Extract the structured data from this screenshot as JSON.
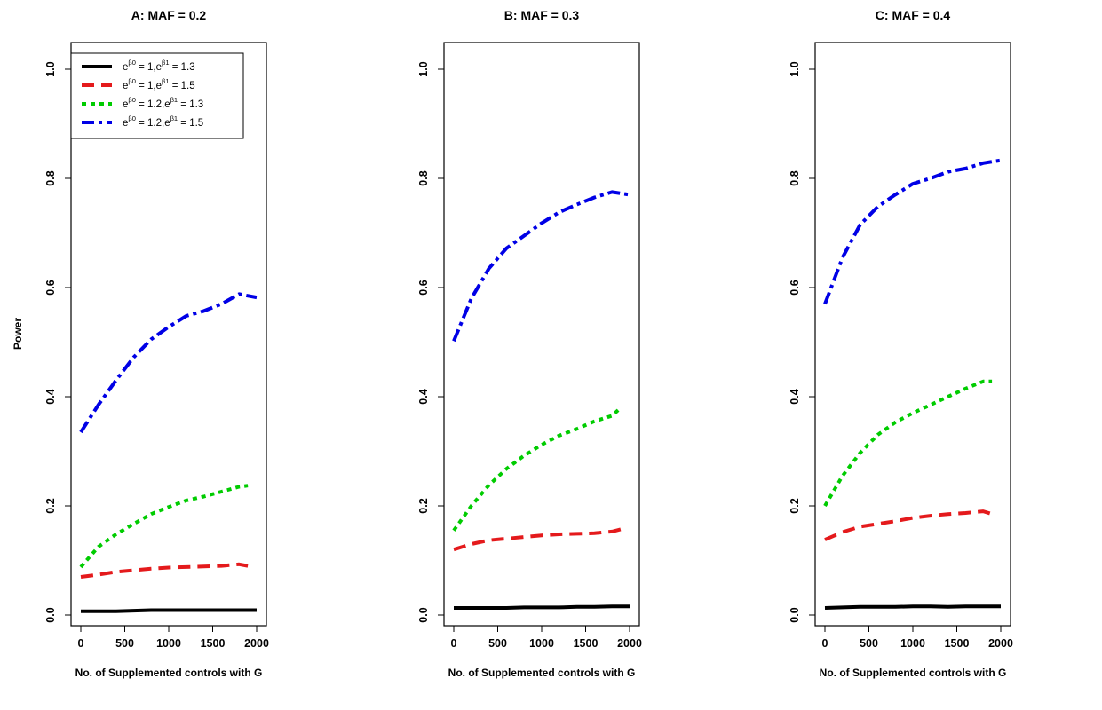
{
  "figure": {
    "ylabel": "Power",
    "xlabel": "No. of Supplemented controls with G"
  },
  "legend": {
    "position": "top-left of panel A",
    "entries": [
      {
        "b0": "1",
        "b1": "1.3"
      },
      {
        "b0": "1",
        "b1": "1.5"
      },
      {
        "b0": "1.2",
        "b1": "1.3"
      },
      {
        "b0": "1.2",
        "b1": "1.5"
      }
    ]
  },
  "styles": [
    {
      "color": "#000000",
      "dash": "none"
    },
    {
      "color": "#e41a1c",
      "dash": "14,8"
    },
    {
      "color": "#00cc00",
      "dash": "5,5"
    },
    {
      "color": "#0000e6",
      "dash": "14,5,4,5"
    }
  ],
  "chart_data": [
    {
      "type": "line",
      "title": "A: MAF = 0.2",
      "xlabel": "No. of Supplemented controls with G",
      "ylabel": "Power",
      "xlim": [
        0,
        2000
      ],
      "ylim": [
        0,
        1
      ],
      "xticks": [
        0,
        500,
        1000,
        1500,
        2000
      ],
      "yticks": [
        0.0,
        0.2,
        0.4,
        0.6,
        0.8,
        1.0
      ],
      "grid": false,
      "series": [
        {
          "x": [
            0,
            200,
            400,
            600,
            800,
            1000,
            1200,
            1400,
            1600,
            1800,
            2000
          ],
          "values": [
            0.007,
            0.007,
            0.007,
            0.008,
            0.009,
            0.009,
            0.009,
            0.009,
            0.009,
            0.009,
            0.009
          ]
        },
        {
          "x": [
            0,
            200,
            400,
            600,
            800,
            1000,
            1200,
            1400,
            1600,
            1800,
            1900
          ],
          "values": [
            0.07,
            0.074,
            0.079,
            0.082,
            0.085,
            0.087,
            0.088,
            0.089,
            0.09,
            0.093,
            0.09
          ]
        },
        {
          "x": [
            0,
            200,
            400,
            600,
            800,
            1000,
            1200,
            1400,
            1600,
            1800,
            1900
          ],
          "values": [
            0.088,
            0.125,
            0.148,
            0.167,
            0.185,
            0.198,
            0.21,
            0.217,
            0.226,
            0.235,
            0.237
          ]
        },
        {
          "x": [
            0,
            200,
            400,
            600,
            800,
            1000,
            1200,
            1400,
            1600,
            1800,
            2000
          ],
          "values": [
            0.335,
            0.385,
            0.43,
            0.472,
            0.505,
            0.528,
            0.548,
            0.557,
            0.57,
            0.588,
            0.582
          ]
        }
      ]
    },
    {
      "type": "line",
      "title": "B: MAF = 0.3",
      "xlabel": "No. of Supplemented controls with G",
      "xlim": [
        0,
        2000
      ],
      "ylim": [
        0,
        1
      ],
      "xticks": [
        0,
        500,
        1000,
        1500,
        2000
      ],
      "yticks": [
        0.0,
        0.2,
        0.4,
        0.6,
        0.8,
        1.0
      ],
      "grid": false,
      "series": [
        {
          "x": [
            0,
            200,
            400,
            600,
            800,
            1000,
            1200,
            1400,
            1600,
            1800,
            2000
          ],
          "values": [
            0.013,
            0.013,
            0.013,
            0.013,
            0.014,
            0.014,
            0.014,
            0.015,
            0.015,
            0.016,
            0.016
          ]
        },
        {
          "x": [
            0,
            200,
            400,
            600,
            800,
            1000,
            1200,
            1400,
            1600,
            1800,
            1900
          ],
          "values": [
            0.12,
            0.13,
            0.137,
            0.14,
            0.143,
            0.146,
            0.148,
            0.149,
            0.15,
            0.153,
            0.157
          ]
        },
        {
          "x": [
            0,
            200,
            400,
            600,
            800,
            1000,
            1200,
            1400,
            1600,
            1800,
            1900
          ],
          "values": [
            0.155,
            0.2,
            0.238,
            0.268,
            0.292,
            0.312,
            0.329,
            0.341,
            0.355,
            0.365,
            0.38
          ]
        },
        {
          "x": [
            0,
            200,
            400,
            600,
            800,
            1000,
            1200,
            1400,
            1600,
            1800,
            2000
          ],
          "values": [
            0.502,
            0.58,
            0.635,
            0.672,
            0.695,
            0.718,
            0.738,
            0.752,
            0.765,
            0.775,
            0.77
          ]
        }
      ]
    },
    {
      "type": "line",
      "title": "C: MAF = 0.4",
      "xlabel": "No. of Supplemented controls with G",
      "xlim": [
        0,
        2000
      ],
      "ylim": [
        0,
        1
      ],
      "xticks": [
        0,
        500,
        1000,
        1500,
        2000
      ],
      "yticks": [
        0.0,
        0.2,
        0.4,
        0.6,
        0.8,
        1.0
      ],
      "grid": false,
      "series": [
        {
          "x": [
            0,
            200,
            400,
            600,
            800,
            1000,
            1200,
            1400,
            1600,
            1800,
            2000
          ],
          "values": [
            0.013,
            0.014,
            0.015,
            0.015,
            0.015,
            0.016,
            0.016,
            0.015,
            0.016,
            0.016,
            0.016
          ]
        },
        {
          "x": [
            0,
            200,
            400,
            600,
            800,
            1000,
            1200,
            1400,
            1600,
            1800,
            1900
          ],
          "values": [
            0.138,
            0.152,
            0.162,
            0.167,
            0.172,
            0.178,
            0.182,
            0.185,
            0.187,
            0.19,
            0.185
          ]
        },
        {
          "x": [
            0,
            200,
            400,
            600,
            800,
            1000,
            1200,
            1400,
            1600,
            1800,
            1900
          ],
          "values": [
            0.2,
            0.255,
            0.297,
            0.33,
            0.353,
            0.37,
            0.385,
            0.4,
            0.415,
            0.428,
            0.428
          ]
        },
        {
          "x": [
            0,
            200,
            400,
            600,
            800,
            1000,
            1200,
            1400,
            1600,
            1800,
            2000
          ],
          "values": [
            0.57,
            0.655,
            0.715,
            0.748,
            0.77,
            0.79,
            0.8,
            0.812,
            0.818,
            0.828,
            0.833
          ]
        }
      ]
    }
  ]
}
